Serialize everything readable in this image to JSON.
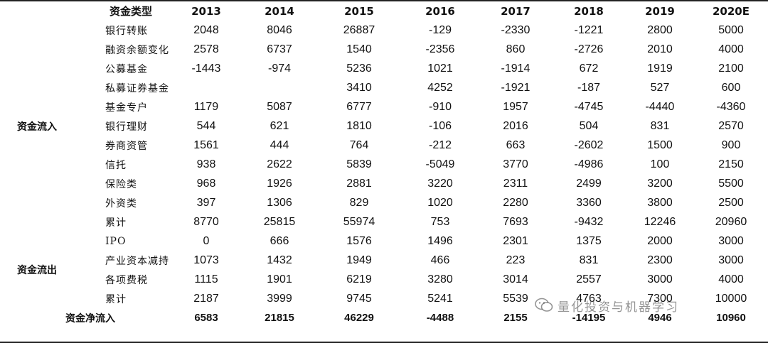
{
  "header": [
    "资金类型",
    "2013",
    "2014",
    "2015",
    "2016",
    "2017",
    "2018",
    "2019",
    "2020E"
  ],
  "groups": {
    "inflow": "资金流入",
    "outflow": "资金流出"
  },
  "inflow_rows": [
    {
      "label": "银行转账",
      "values": [
        "2048",
        "8046",
        "26887",
        "-129",
        "-2330",
        "-1221",
        "2800",
        "5000"
      ]
    },
    {
      "label": "融资余额变化",
      "values": [
        "2578",
        "6737",
        "1540",
        "-2356",
        "860",
        "-2726",
        "2010",
        "4000"
      ]
    },
    {
      "label": "公募基金",
      "values": [
        "-1443",
        "-974",
        "5236",
        "1021",
        "-1914",
        "672",
        "1919",
        "2100"
      ]
    },
    {
      "label": "私募证券基金",
      "values": [
        "",
        "",
        "3410",
        "4252",
        "-1921",
        "-187",
        "527",
        "600"
      ]
    },
    {
      "label": "基金专户",
      "values": [
        "1179",
        "5087",
        "6777",
        "-910",
        "1957",
        "-4745",
        "-4440",
        "-4360"
      ]
    },
    {
      "label": "银行理财",
      "values": [
        "544",
        "621",
        "1810",
        "-106",
        "2016",
        "504",
        "831",
        "2570"
      ]
    },
    {
      "label": "券商资管",
      "values": [
        "1561",
        "444",
        "764",
        "-212",
        "663",
        "-2602",
        "1500",
        "900"
      ]
    },
    {
      "label": "信托",
      "values": [
        "938",
        "2622",
        "5839",
        "-5049",
        "3770",
        "-4986",
        "100",
        "2150"
      ]
    },
    {
      "label": "保险类",
      "values": [
        "968",
        "1926",
        "2881",
        "3220",
        "2311",
        "2499",
        "3200",
        "5500"
      ]
    },
    {
      "label": "外资类",
      "values": [
        "397",
        "1306",
        "829",
        "1020",
        "2280",
        "3360",
        "3800",
        "2500"
      ]
    },
    {
      "label": "累计",
      "values": [
        "8770",
        "25815",
        "55974",
        "753",
        "7693",
        "-9432",
        "12246",
        "20960"
      ]
    }
  ],
  "outflow_rows": [
    {
      "label": "IPO",
      "values": [
        "0",
        "666",
        "1576",
        "1496",
        "2301",
        "1375",
        "2000",
        "3000"
      ]
    },
    {
      "label": "产业资本减持",
      "values": [
        "1073",
        "1432",
        "1949",
        "466",
        "223",
        "831",
        "2300",
        "3000"
      ]
    },
    {
      "label": "各项费税",
      "values": [
        "1115",
        "1901",
        "6219",
        "3280",
        "3014",
        "2557",
        "3000",
        "4000"
      ]
    },
    {
      "label": "累计",
      "values": [
        "2187",
        "3999",
        "9745",
        "5241",
        "5539",
        "4763",
        "7300",
        "10000"
      ]
    }
  ],
  "net_row": {
    "label": "资金净流入",
    "values": [
      "6583",
      "21815",
      "46229",
      "-4488",
      "2155",
      "-14195",
      "4946",
      "10960"
    ]
  },
  "watermark": "量化投资与机器学习"
}
